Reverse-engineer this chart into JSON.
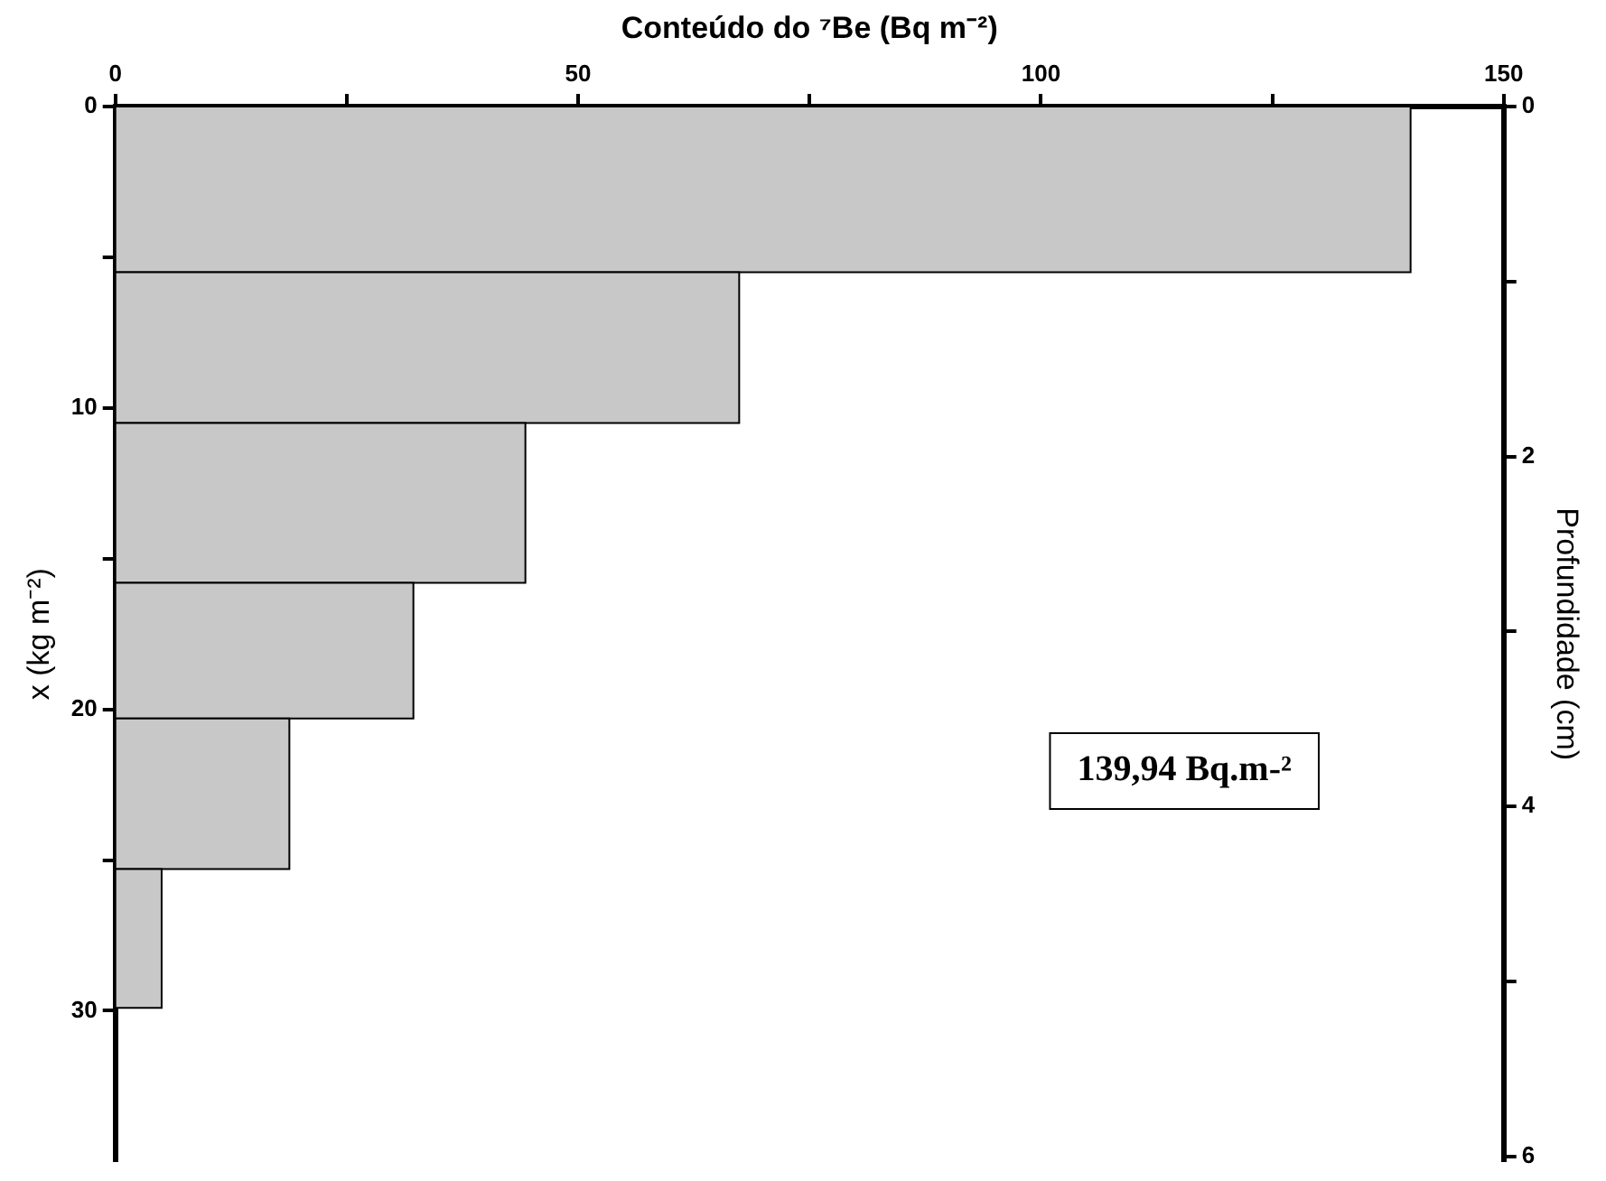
{
  "chart_data": {
    "type": "histogram",
    "orientation": "horizontal",
    "xlabel": "Conteúdo do ⁷Be (Bq m⁻²)",
    "ylabel": "x (kg m⁻²)",
    "y2label": "Profundidade (cm)",
    "bins": [
      0,
      5.5,
      10.5,
      15.8,
      20.3,
      25.3,
      29.9
    ],
    "values": [
      139.94,
      67.4,
      44.3,
      32.2,
      18.8,
      5.0
    ],
    "color": "#c8c8c8",
    "xlim": [
      0,
      150
    ],
    "xticks": [
      0,
      {
        "value": 25,
        "label": null
      },
      50,
      {
        "value": 75,
        "label": null
      },
      100,
      {
        "value": 125,
        "label": null
      },
      150
    ],
    "ylim": [
      35,
      0
    ],
    "yticks": [
      0,
      {
        "value": 5,
        "label": null
      },
      10,
      {
        "value": 15,
        "label": null
      },
      20,
      {
        "value": 25,
        "label": null
      },
      30
    ],
    "y2lim": [
      6.03,
      0
    ],
    "y2ticks": [
      0,
      {
        "value": 1,
        "label": null
      },
      2,
      {
        "value": 3,
        "label": null
      },
      4,
      {
        "value": 5,
        "label": null
      },
      6
    ],
    "grid": false,
    "legend": false,
    "annotations": [
      "139,94 Bq.m-²"
    ]
  }
}
